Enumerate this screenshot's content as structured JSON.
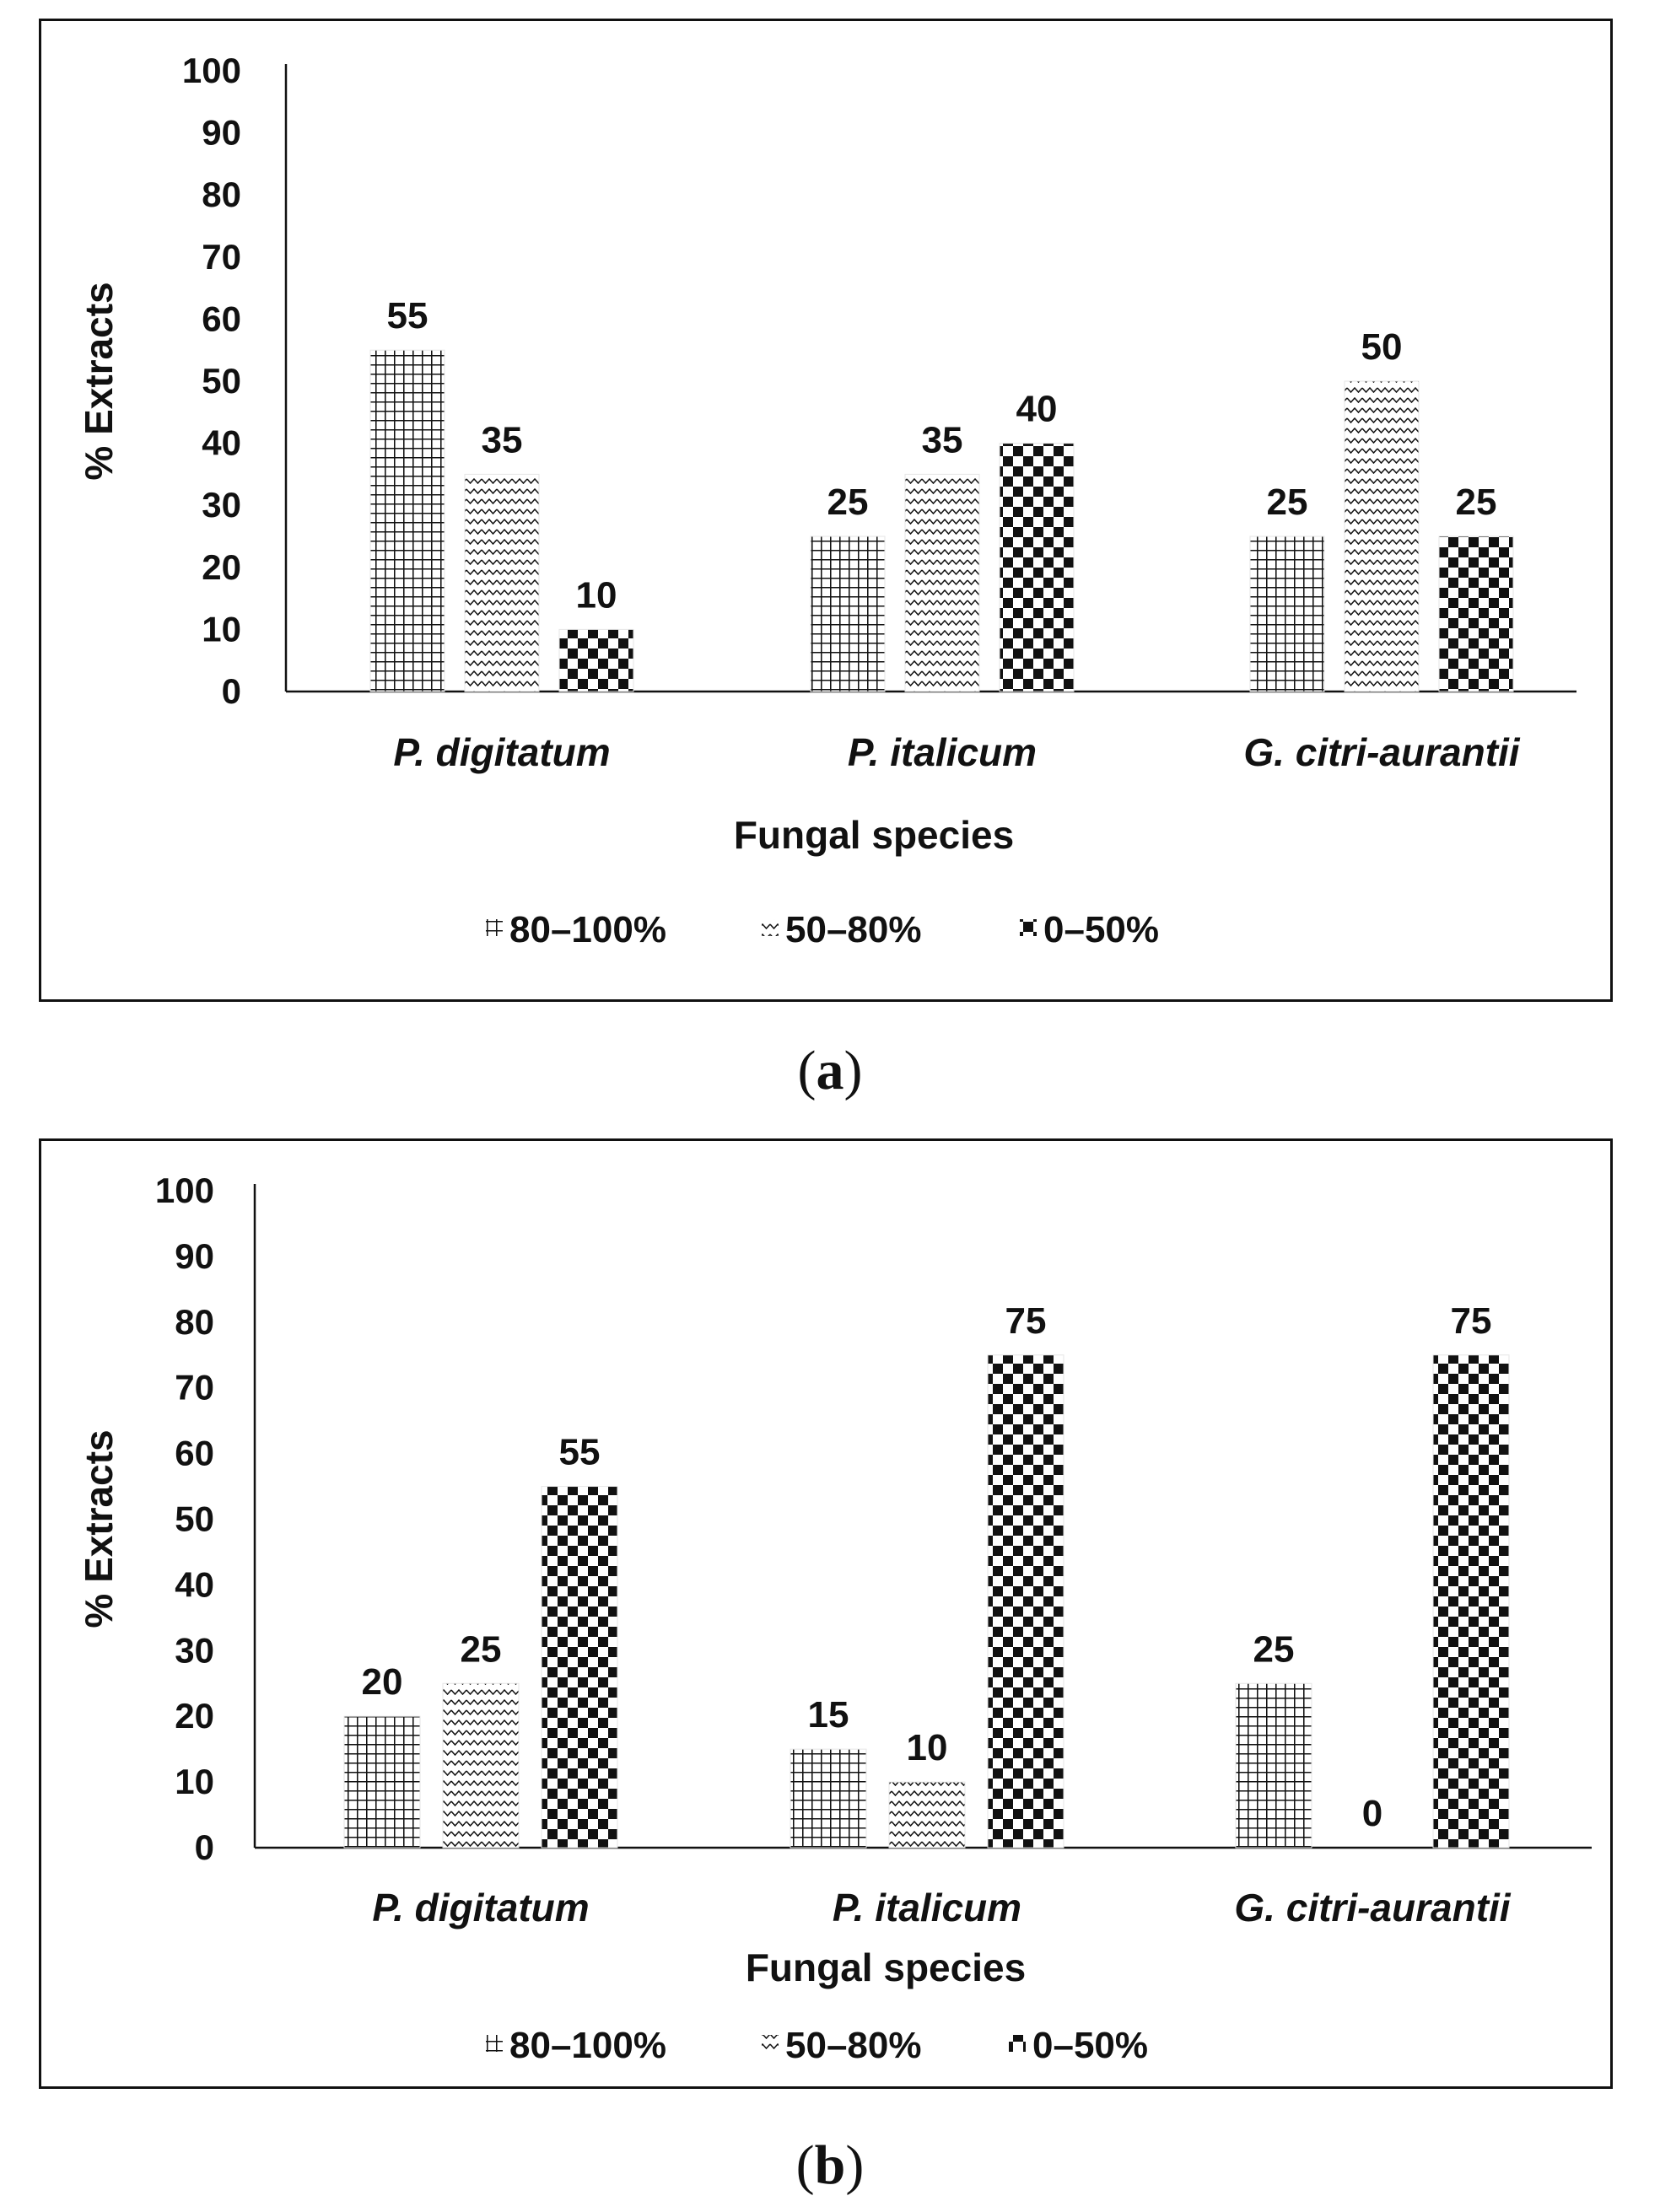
{
  "chart_data": [
    {
      "panel_label": "a",
      "type": "bar",
      "title": "",
      "xlabel": "Fungal species",
      "ylabel": "% Extracts",
      "ylim": [
        0,
        100
      ],
      "yticks": [
        0,
        10,
        20,
        30,
        40,
        50,
        60,
        70,
        80,
        90,
        100
      ],
      "grid": false,
      "legend_position": "bottom",
      "categories": [
        "P. digitatum",
        "P. italicum",
        "G. citri-aurantii"
      ],
      "series": [
        {
          "name": "80–100%",
          "pattern": "grid",
          "values": [
            55,
            25,
            25
          ]
        },
        {
          "name": "50–80%",
          "pattern": "zigzag",
          "values": [
            35,
            35,
            50
          ]
        },
        {
          "name": "0–50%",
          "pattern": "checker",
          "values": [
            10,
            40,
            25
          ]
        }
      ]
    },
    {
      "panel_label": "b",
      "type": "bar",
      "title": "",
      "xlabel": "Fungal species",
      "ylabel": "% Extracts",
      "ylim": [
        0,
        100
      ],
      "yticks": [
        0,
        10,
        20,
        30,
        40,
        50,
        60,
        70,
        80,
        90,
        100
      ],
      "grid": false,
      "legend_position": "bottom",
      "categories": [
        "P. digitatum",
        "P. italicum",
        "G. citri-aurantii"
      ],
      "series": [
        {
          "name": "80–100%",
          "pattern": "grid",
          "values": [
            20,
            15,
            25
          ]
        },
        {
          "name": "50–80%",
          "pattern": "zigzag",
          "values": [
            25,
            10,
            0
          ]
        },
        {
          "name": "0–50%",
          "pattern": "checker",
          "values": [
            55,
            75,
            75
          ]
        }
      ]
    }
  ],
  "captions": {
    "a": "a",
    "b": "b"
  },
  "colors": {
    "ink": "#111111",
    "background": "#ffffff"
  }
}
